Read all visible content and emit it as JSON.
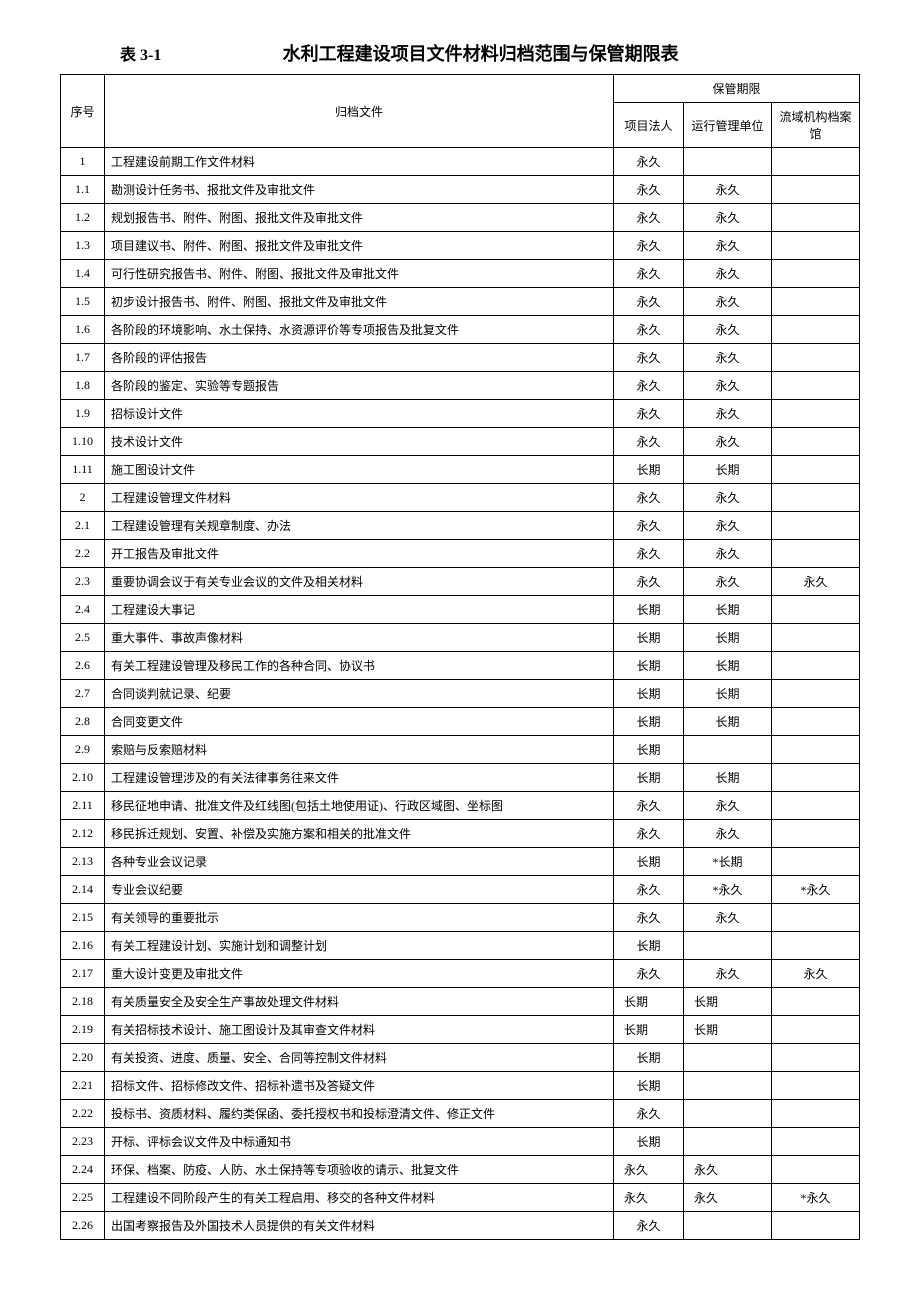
{
  "table_label": "表 3-1",
  "table_title": "水利工程建设项目文件材料归档范围与保管期限表",
  "headers": {
    "seq": "序号",
    "doc": "归档文件",
    "period_group": "保管期限",
    "p1": "项目法人",
    "p2": "运行管理单位",
    "p3": "流域机构档案馆"
  },
  "rows": [
    {
      "seq": "1",
      "doc": "工程建设前期工作文件材料",
      "p1": "永久",
      "p2": "",
      "p3": ""
    },
    {
      "seq": "1.1",
      "doc": "勘测设计任务书、报批文件及审批文件",
      "p1": "永久",
      "p2": "永久",
      "p3": ""
    },
    {
      "seq": "1.2",
      "doc": "规划报告书、附件、附图、报批文件及审批文件",
      "p1": "永久",
      "p2": "永久",
      "p3": ""
    },
    {
      "seq": "1.3",
      "doc": "项目建议书、附件、附图、报批文件及审批文件",
      "p1": "永久",
      "p2": "永久",
      "p3": ""
    },
    {
      "seq": "1.4",
      "doc": "可行性研究报告书、附件、附图、报批文件及审批文件",
      "p1": "永久",
      "p2": "永久",
      "p3": ""
    },
    {
      "seq": "1.5",
      "doc": "初步设计报告书、附件、附图、报批文件及审批文件",
      "p1": "永久",
      "p2": "永久",
      "p3": ""
    },
    {
      "seq": "1.6",
      "doc": "各阶段的环境影响、水土保持、水资源评价等专项报告及批复文件",
      "p1": "永久",
      "p2": "永久",
      "p3": ""
    },
    {
      "seq": "1.7",
      "doc": "各阶段的评估报告",
      "p1": "永久",
      "p2": "永久",
      "p3": ""
    },
    {
      "seq": "1.8",
      "doc": "各阶段的鉴定、实验等专题报告",
      "p1": "永久",
      "p2": "永久",
      "p3": ""
    },
    {
      "seq": "1.9",
      "doc": "招标设计文件",
      "p1": "永久",
      "p2": "永久",
      "p3": ""
    },
    {
      "seq": "1.10",
      "doc": "技术设计文件",
      "p1": "永久",
      "p2": "永久",
      "p3": ""
    },
    {
      "seq": "1.11",
      "doc": "施工图设计文件",
      "p1": "长期",
      "p2": "长期",
      "p3": ""
    },
    {
      "seq": "2",
      "doc": "工程建设管理文件材料",
      "p1": "永久",
      "p2": "永久",
      "p3": ""
    },
    {
      "seq": "2.1",
      "doc": "工程建设管理有关规章制度、办法",
      "p1": "永久",
      "p2": "永久",
      "p3": ""
    },
    {
      "seq": "2.2",
      "doc": "开工报告及审批文件",
      "p1": "永久",
      "p2": "永久",
      "p3": ""
    },
    {
      "seq": "2.3",
      "doc": "重要协调会议于有关专业会议的文件及相关材料",
      "p1": "永久",
      "p2": "永久",
      "p3": "永久"
    },
    {
      "seq": "2.4",
      "doc": "工程建设大事记",
      "p1": "长期",
      "p2": "长期",
      "p3": ""
    },
    {
      "seq": "2.5",
      "doc": "重大事件、事故声像材料",
      "p1": "长期",
      "p2": "长期",
      "p3": ""
    },
    {
      "seq": "2.6",
      "doc": "有关工程建设管理及移民工作的各种合同、协议书",
      "p1": "长期",
      "p2": "长期",
      "p3": ""
    },
    {
      "seq": "2.7",
      "doc": "合同谈判就记录、纪要",
      "p1": "长期",
      "p2": "长期",
      "p3": ""
    },
    {
      "seq": "2.8",
      "doc": "合同变更文件",
      "p1": "长期",
      "p2": "长期",
      "p3": ""
    },
    {
      "seq": "2.9",
      "doc": "索赔与反索赔材料",
      "p1": "长期",
      "p2": "",
      "p3": ""
    },
    {
      "seq": "2.10",
      "doc": "工程建设管理涉及的有关法律事务往来文件",
      "p1": "长期",
      "p2": "长期",
      "p3": ""
    },
    {
      "seq": "2.11",
      "doc": "移民征地申请、批准文件及红线图(包括土地使用证)、行政区域图、坐标图",
      "p1": "永久",
      "p2": "永久",
      "p3": ""
    },
    {
      "seq": "2.12",
      "doc": "移民拆迁规划、安置、补偿及实施方案和相关的批准文件",
      "p1": "永久",
      "p2": "永久",
      "p3": ""
    },
    {
      "seq": "2.13",
      "doc": "各种专业会议记录",
      "p1": "长期",
      "p2": "*长期",
      "p3": ""
    },
    {
      "seq": "2.14",
      "doc": "专业会议纪要",
      "p1": "永久",
      "p2": "*永久",
      "p3": "*永久"
    },
    {
      "seq": "2.15",
      "doc": "有关领导的重要批示",
      "p1": "永久",
      "p2": "永久",
      "p3": ""
    },
    {
      "seq": "2.16",
      "doc": "有关工程建设计划、实施计划和调整计划",
      "p1": "长期",
      "p2": "",
      "p3": ""
    },
    {
      "seq": "2.17",
      "doc": "重大设计变更及审批文件",
      "p1": "永久",
      "p2": "永久",
      "p3": "永久"
    },
    {
      "seq": "2.18",
      "doc": "有关质量安全及安全生产事故处理文件材料",
      "p1": "长期",
      "p2": "长期",
      "p3": "",
      "left": true
    },
    {
      "seq": "2.19",
      "doc": "有关招标技术设计、施工图设计及其审查文件材料",
      "p1": "长期",
      "p2": "长期",
      "p3": "",
      "left": true
    },
    {
      "seq": "2.20",
      "doc": "有关投资、进度、质量、安全、合同等控制文件材料",
      "p1": "长期",
      "p2": "",
      "p3": ""
    },
    {
      "seq": "2.21",
      "doc": "招标文件、招标修改文件、招标补遗书及答疑文件",
      "p1": "长期",
      "p2": "",
      "p3": ""
    },
    {
      "seq": "2.22",
      "doc": "投标书、资质材料、履约类保函、委托授权书和投标澄清文件、修正文件",
      "p1": "永久",
      "p2": "",
      "p3": ""
    },
    {
      "seq": "2.23",
      "doc": "开标、评标会议文件及中标通知书",
      "p1": "长期",
      "p2": "",
      "p3": ""
    },
    {
      "seq": "2.24",
      "doc": "环保、档案、防疫、人防、水土保持等专项验收的请示、批复文件",
      "p1": "永久",
      "p2": "永久",
      "p3": "",
      "left": true
    },
    {
      "seq": "2.25",
      "doc": "工程建设不同阶段产生的有关工程启用、移交的各种文件材料",
      "p1": "永久",
      "p2": "永久",
      "p3": "*永久",
      "left": true
    },
    {
      "seq": "2.26",
      "doc": "出国考察报告及外国技术人员提供的有关文件材料",
      "p1": "永久",
      "p2": "",
      "p3": ""
    }
  ]
}
